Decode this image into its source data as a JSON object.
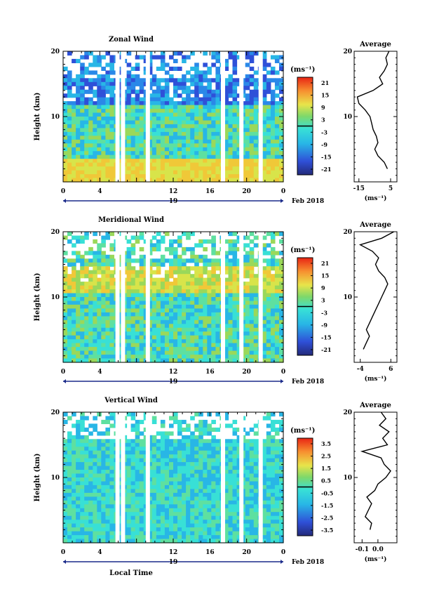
{
  "chart_data": [
    {
      "type": "heatmap",
      "title": "Zonal Wind",
      "ylabel": "Height (km)",
      "xlim": [
        0,
        24
      ],
      "ylim": [
        0,
        20
      ],
      "yticks": [
        20,
        10
      ],
      "x_tick_labels": [
        "0",
        "4",
        "12",
        "16",
        "20",
        "0"
      ],
      "date_label": "19",
      "month_label": "Feb 2018",
      "colorbar": {
        "unit": "(ms⁻¹)",
        "ticks": [
          "21",
          "15",
          "9",
          "3",
          "-3",
          "-9",
          "-15",
          "-21"
        ],
        "range": [
          -24,
          24
        ]
      },
      "average_profile": {
        "title": "Average",
        "xlabel": "(ms⁻¹)",
        "xticks": [
          "-15",
          "5"
        ],
        "xlim": [
          -18,
          9
        ],
        "height_km": [
          2,
          3,
          4,
          5,
          6,
          7,
          8,
          9,
          10,
          11,
          12,
          13,
          14,
          15,
          16,
          17,
          18,
          19,
          20
        ],
        "values": [
          3,
          1,
          -3,
          -5,
          -3,
          -4,
          -6,
          -7,
          -8,
          -11,
          -15,
          -16,
          -6,
          0,
          -2,
          1,
          3,
          2,
          4
        ]
      }
    },
    {
      "type": "heatmap",
      "title": "Meridional Wind",
      "ylabel": "Height (km)",
      "xlim": [
        0,
        24
      ],
      "ylim": [
        0,
        20
      ],
      "yticks": [
        20,
        10
      ],
      "x_tick_labels": [
        "0",
        "4",
        "12",
        "16",
        "20",
        "0"
      ],
      "date_label": "19",
      "month_label": "Feb 2018",
      "colorbar": {
        "unit": "(ms⁻¹)",
        "ticks": [
          "21",
          "15",
          "9",
          "3",
          "-3",
          "-9",
          "-15",
          "-21"
        ],
        "range": [
          -24,
          24
        ]
      },
      "average_profile": {
        "title": "Average",
        "xlabel": "(ms⁻¹)",
        "xticks": [
          "-4",
          "6"
        ],
        "xlim": [
          -6,
          8
        ],
        "height_km": [
          2,
          3,
          4,
          5,
          6,
          7,
          8,
          9,
          10,
          11,
          12,
          13,
          14,
          15,
          16,
          17,
          18,
          19,
          20
        ],
        "values": [
          -3,
          -2,
          -1,
          -2,
          -1,
          0,
          1,
          2,
          3,
          4,
          5,
          4,
          2,
          1,
          2,
          0,
          -4,
          3,
          7
        ]
      }
    },
    {
      "type": "heatmap",
      "title": "Vertical Wind",
      "ylabel": "Height (km)",
      "xlabel": "Local Time",
      "xlim": [
        0,
        24
      ],
      "ylim": [
        0,
        20
      ],
      "yticks": [
        20,
        10
      ],
      "x_tick_labels": [
        "0",
        "4",
        "12",
        "16",
        "20",
        "0"
      ],
      "date_label": "19",
      "month_label": "Feb 2018",
      "colorbar": {
        "unit": "(ms⁻¹)",
        "ticks": [
          "3.5",
          "2.5",
          "1.5",
          "0.5",
          "-0.5",
          "-1.5",
          "-2.5",
          "-3.5"
        ],
        "range": [
          -4,
          4
        ]
      },
      "average_profile": {
        "title": "Average",
        "xlabel": "(ms⁻¹)",
        "xticks": [
          "-0.1",
          "0.0"
        ],
        "xlim": [
          -0.15,
          0.12
        ],
        "height_km": [
          2,
          3,
          4,
          5,
          6,
          7,
          8,
          9,
          10,
          11,
          12,
          13,
          14,
          15,
          16,
          17,
          18,
          19,
          20
        ],
        "values": [
          -0.05,
          -0.04,
          -0.08,
          -0.06,
          -0.04,
          -0.07,
          -0.02,
          0.0,
          0.05,
          0.08,
          0.04,
          0.02,
          -0.1,
          0.06,
          0.03,
          0.07,
          0.01,
          0.05,
          0.02
        ]
      }
    }
  ]
}
